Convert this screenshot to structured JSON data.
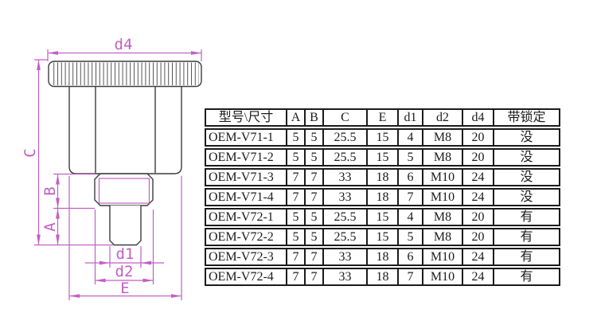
{
  "drawing": {
    "dim_color": "#c25fc2",
    "line_color": "#3c3c3c",
    "labels": {
      "d4": "d4",
      "C": "C",
      "B": "B",
      "A": "A",
      "d1": "d1",
      "d2": "d2",
      "E": "E"
    }
  },
  "table": {
    "headers": [
      "型号\\尺寸",
      "A",
      "B",
      "C",
      "E",
      "d1",
      "d2",
      "d4",
      "带锁定"
    ],
    "rows": [
      {
        "model": "OEM-V71-1",
        "values": [
          "5",
          "5",
          "25.5",
          "15",
          "4",
          "M8",
          "20",
          "没"
        ]
      },
      {
        "model": "OEM-V71-2",
        "values": [
          "5",
          "5",
          "25.5",
          "15",
          "5",
          "M8",
          "20",
          "没"
        ]
      },
      {
        "model": "OEM-V71-3",
        "values": [
          "7",
          "7",
          "33",
          "18",
          "6",
          "M10",
          "24",
          "没"
        ]
      },
      {
        "model": "OEM-V71-4",
        "values": [
          "7",
          "7",
          "33",
          "18",
          "7",
          "M10",
          "24",
          "没"
        ]
      },
      {
        "model": "OEM-V72-1",
        "values": [
          "5",
          "5",
          "25.5",
          "15",
          "4",
          "M8",
          "20",
          "有"
        ]
      },
      {
        "model": "OEM-V72-2",
        "values": [
          "5",
          "5",
          "25.5",
          "15",
          "5",
          "M8",
          "20",
          "有"
        ]
      },
      {
        "model": "OEM-V72-3",
        "values": [
          "7",
          "7",
          "33",
          "18",
          "6",
          "M10",
          "24",
          "有"
        ]
      },
      {
        "model": "OEM-V72-4",
        "values": [
          "7",
          "7",
          "33",
          "18",
          "7",
          "M10",
          "24",
          "有"
        ]
      }
    ]
  }
}
